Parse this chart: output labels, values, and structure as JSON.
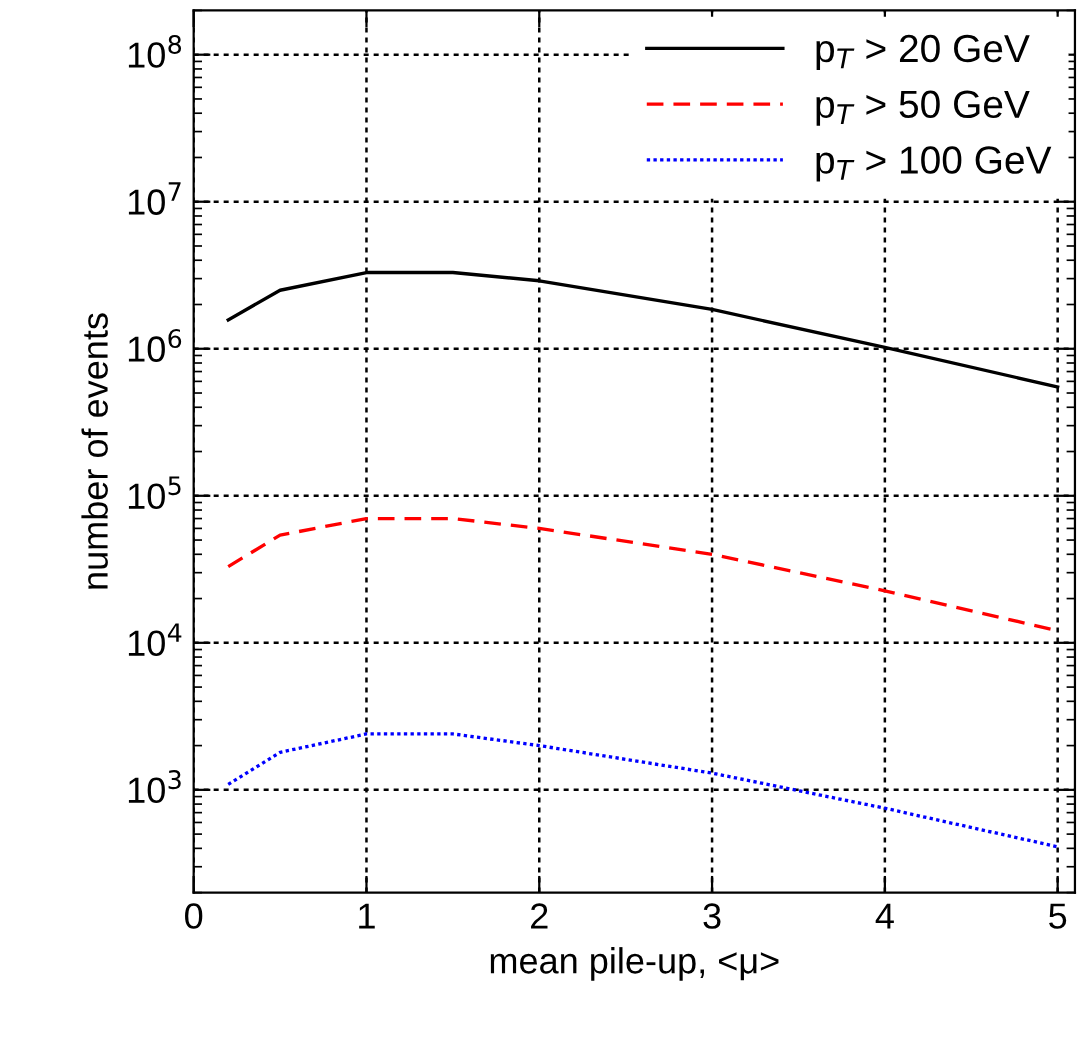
{
  "chart_data": {
    "type": "line",
    "xlabel": "mean pile-up, <μ>",
    "ylabel": "number of events",
    "log": "y",
    "grid": true,
    "legend": "top right",
    "xlim": [
      0,
      5.1
    ],
    "xticks": [
      0,
      1,
      2,
      3,
      4,
      5
    ],
    "ylim": [
      200,
      200000000
    ],
    "yticks": [
      {
        "value": 1000,
        "label": "10$^{3}$"
      },
      {
        "value": 10000,
        "label": "10$^{4}$"
      },
      {
        "value": 100000,
        "label": "10$^{5}$"
      },
      {
        "value": 1000000,
        "label": "10$^{6}$"
      },
      {
        "value": 10000000,
        "label": "10$^{7}$"
      },
      {
        "value": 100000000,
        "label": "10$^{8}$"
      }
    ],
    "x": [
      0.2,
      0.5,
      1,
      1.5,
      2,
      3,
      4,
      5
    ],
    "series": [
      {
        "name": "p$_{T}$ > 20 GeV",
        "color": "#000000",
        "line_style": "solid",
        "values": [
          1570000,
          2500000,
          3300000,
          3300000,
          2900000,
          1850000,
          1020000,
          550000
        ]
      },
      {
        "name": "p$_{T}$ > 50 GeV",
        "color": "#ff0000",
        "line_style": "dashed",
        "values": [
          33000,
          54000,
          70000,
          70000,
          60000,
          40000,
          22600,
          12100
        ]
      },
      {
        "name": "p$_{T}$ > 100 GeV",
        "color": "#0000ff",
        "line_style": "dotted",
        "values": [
          1090,
          1800,
          2400,
          2400,
          2000,
          1300,
          750,
          410
        ]
      }
    ]
  }
}
